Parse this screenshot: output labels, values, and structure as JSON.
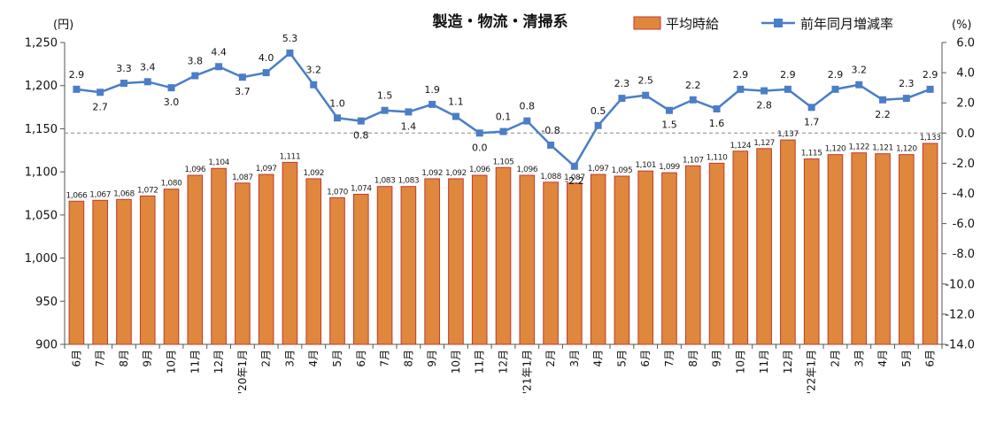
{
  "chart_data": {
    "type": "bar",
    "title": "製造・物流・清掃系",
    "left_unit": "(円)",
    "right_unit": "(%)",
    "categories": [
      "6月",
      "7月",
      "8月",
      "9月",
      "10月",
      "11月",
      "12月",
      "'20年1月",
      "2月",
      "3月",
      "4月",
      "5月",
      "6月",
      "7月",
      "8月",
      "9月",
      "10月",
      "11月",
      "12月",
      "'21年1月",
      "2月",
      "3月",
      "4月",
      "5月",
      "6月",
      "7月",
      "8月",
      "9月",
      "10月",
      "11月",
      "12月",
      "'22年1月",
      "2月",
      "3月",
      "4月",
      "5月",
      "6月"
    ],
    "series": [
      {
        "name": "平均時給",
        "type": "bar",
        "axis": "left",
        "color": "#E0873E",
        "edge_color": "#C0392B",
        "values": [
          1066,
          1067,
          1068,
          1072,
          1080,
          1096,
          1104,
          1087,
          1097,
          1111,
          1092,
          1070,
          1074,
          1083,
          1083,
          1092,
          1092,
          1096,
          1105,
          1096,
          1088,
          1087,
          1097,
          1095,
          1101,
          1099,
          1107,
          1110,
          1124,
          1127,
          1137,
          1115,
          1120,
          1122,
          1121,
          1120,
          1133
        ],
        "labels": [
          "1,066",
          "1,067",
          "1,068",
          "1,072",
          "1,080",
          "1,096",
          "1,104",
          "1,087",
          "1,097",
          "1,111",
          "1,092",
          "1,070",
          "1,074",
          "1,083",
          "1,083",
          "1,092",
          "1,092",
          "1,096",
          "1,105",
          "1,096",
          "1,088",
          "1,087",
          "1,097",
          "1,095",
          "1,101",
          "1,099",
          "1,107",
          "1,110",
          "1,124",
          "1,127",
          "1,137",
          "1,115",
          "1,120",
          "1,122",
          "1,121",
          "1,120",
          "1,133"
        ]
      },
      {
        "name": "前年同月増減率",
        "type": "line",
        "axis": "right",
        "color": "#4A7EC7",
        "values": [
          2.9,
          2.7,
          3.3,
          3.4,
          3.0,
          3.8,
          4.4,
          3.7,
          4.0,
          5.3,
          3.2,
          1.0,
          0.8,
          1.5,
          1.4,
          1.9,
          1.1,
          0.0,
          0.1,
          0.8,
          -0.8,
          -2.2,
          0.5,
          2.3,
          2.5,
          1.5,
          2.2,
          1.6,
          2.9,
          2.8,
          2.9,
          1.7,
          2.9,
          3.2,
          2.2,
          2.3,
          2.9
        ],
        "labels": [
          "2.9",
          "2.7",
          "3.3",
          "3.4",
          "3.0",
          "3.8",
          "4.4",
          "3.7",
          "4.0",
          "5.3",
          "3.2",
          "1.0",
          "0.8",
          "1.5",
          "1.4",
          "1.9",
          "1.1",
          "0.0",
          "0.1",
          "0.8",
          "-0.8",
          "-2.2",
          "0.5",
          "2.3",
          "2.5",
          "1.5",
          "2.2",
          "1.6",
          "2.9",
          "2.8",
          "2.9",
          "1.7",
          "2.9",
          "3.2",
          "2.2",
          "2.3",
          "2.9"
        ]
      }
    ],
    "y_left": {
      "min": 900,
      "max": 1250,
      "step": 50,
      "tick_labels": [
        "900",
        "950",
        "1,000",
        "1,050",
        "1,100",
        "1,150",
        "1,200",
        "1,250"
      ]
    },
    "y_right": {
      "min": -14,
      "max": 6,
      "step": 2,
      "tick_labels": [
        "-14.0",
        "-12.0",
        "-10.0",
        "-8.0",
        "-6.0",
        "-4.0",
        "-2.0",
        "0.0",
        "2.0",
        "4.0",
        "6.0"
      ]
    },
    "zero_reference_line": {
      "axis": "right",
      "value": 0,
      "style": "dashed"
    },
    "legend_position": "top-right",
    "grid": false
  }
}
